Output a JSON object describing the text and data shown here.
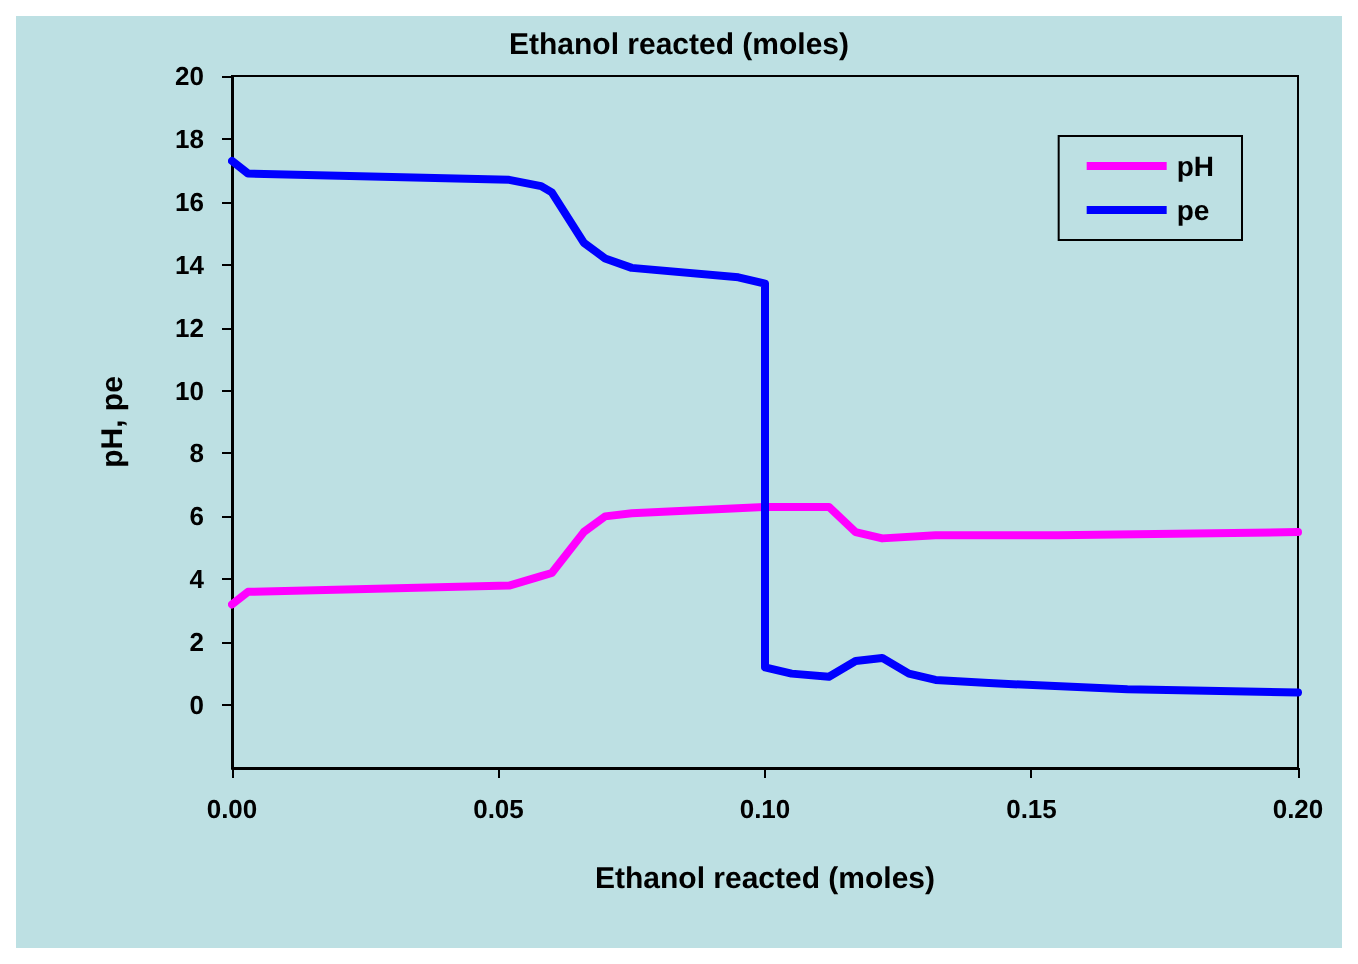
{
  "chart_data": {
    "type": "line",
    "title": "Ethanol reacted (moles)",
    "xlabel": "Ethanol reacted (moles)",
    "ylabel": "pH, pe",
    "xlim": [
      0,
      0.2
    ],
    "xticks": [
      {
        "value": 0,
        "label": "0.00"
      },
      {
        "value": 0.05,
        "label": "0.05"
      },
      {
        "value": 0.1,
        "label": "0.10"
      },
      {
        "value": 0.15,
        "label": "0.15"
      },
      {
        "value": 0.2,
        "label": "0.20"
      }
    ],
    "ylim": [
      -2,
      20
    ],
    "yticks": [
      0,
      2,
      4,
      6,
      8,
      10,
      12,
      14,
      16,
      18,
      20
    ],
    "grid": false,
    "legend": "top right",
    "marker": "none",
    "line_style": "solid",
    "series": [
      {
        "name": "pH",
        "color": "#ff00ff",
        "x": [
          0,
          0.003,
          0.052,
          0.058,
          0.06,
          0.066,
          0.07,
          0.075,
          0.1,
          0.112,
          0.117,
          0.122,
          0.132,
          0.155,
          0.2
        ],
        "values": [
          3.2,
          3.6,
          3.8,
          4.1,
          4.2,
          5.5,
          6.0,
          6.1,
          6.3,
          6.3,
          5.5,
          5.3,
          5.4,
          5.4,
          5.5
        ]
      },
      {
        "name": "pe",
        "color": "#0000ff",
        "x": [
          0,
          0.003,
          0.052,
          0.058,
          0.06,
          0.066,
          0.07,
          0.075,
          0.095,
          0.1,
          0.1,
          0.105,
          0.112,
          0.117,
          0.122,
          0.127,
          0.132,
          0.142,
          0.168,
          0.2
        ],
        "values": [
          17.3,
          16.9,
          16.7,
          16.5,
          16.3,
          14.7,
          14.2,
          13.9,
          13.6,
          13.4,
          1.2,
          1.0,
          0.9,
          1.4,
          1.5,
          1.0,
          0.8,
          0.7,
          0.5,
          0.4
        ]
      }
    ]
  }
}
